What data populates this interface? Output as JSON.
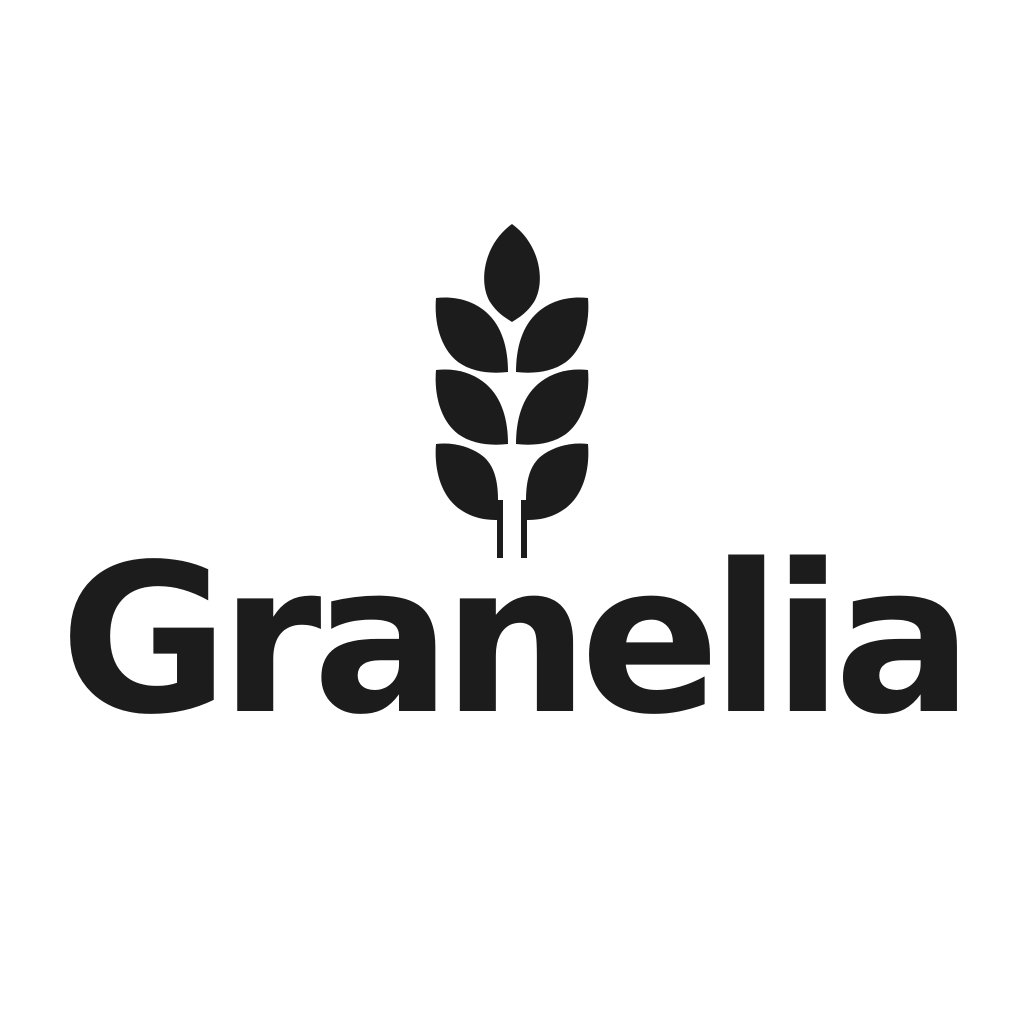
{
  "brand": {
    "name": "Granelia",
    "mark_icon": "wheat-icon",
    "ink_color": "#1c1c1c",
    "background_color": "#ffffff"
  }
}
